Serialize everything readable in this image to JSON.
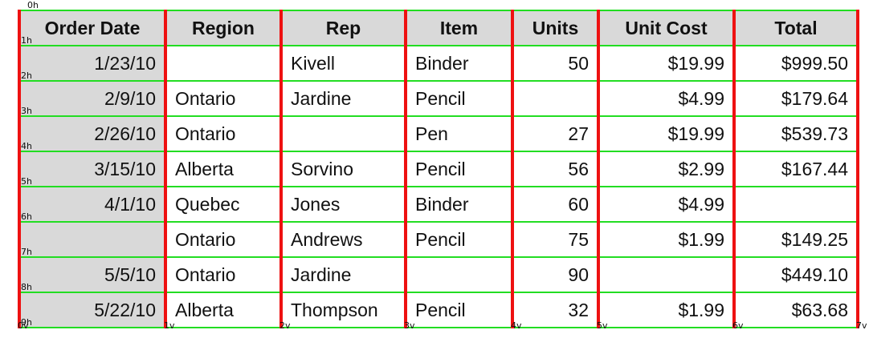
{
  "markers": {
    "h": [
      "0h",
      "1h",
      "2h",
      "3h",
      "4h",
      "5h",
      "6h",
      "7h",
      "8h",
      "9h"
    ],
    "v": [
      "0v",
      "1v",
      "2v",
      "3v",
      "4v",
      "5v",
      "6v",
      "7v"
    ]
  },
  "headers": [
    "Order Date",
    "Region",
    "Rep",
    "Item",
    "Units",
    "Unit Cost",
    "Total"
  ],
  "rows": [
    [
      "1/23/10",
      "",
      "Kivell",
      "Binder",
      "50",
      "$19.99",
      "$999.50"
    ],
    [
      "2/9/10",
      "Ontario",
      "Jardine",
      "Pencil",
      "",
      "$4.99",
      "$179.64"
    ],
    [
      "2/26/10",
      "Ontario",
      "",
      "Pen",
      "27",
      "$19.99",
      "$539.73"
    ],
    [
      "3/15/10",
      "Alberta",
      "Sorvino",
      "Pencil",
      "56",
      "$2.99",
      "$167.44"
    ],
    [
      "4/1/10",
      "Quebec",
      "Jones",
      "Binder",
      "60",
      "$4.99",
      ""
    ],
    [
      "",
      "Ontario",
      "Andrews",
      "Pencil",
      "75",
      "$1.99",
      "$149.25"
    ],
    [
      "5/5/10",
      "Ontario",
      "Jardine",
      "",
      "90",
      "",
      "$449.10"
    ],
    [
      "5/22/10",
      "Alberta",
      "Thompson",
      "Pencil",
      "32",
      "$1.99",
      "$63.68"
    ]
  ],
  "colors": {
    "h_line": "#22dd22",
    "v_line": "#ee1111",
    "header_bg": "#d9d9d9"
  }
}
